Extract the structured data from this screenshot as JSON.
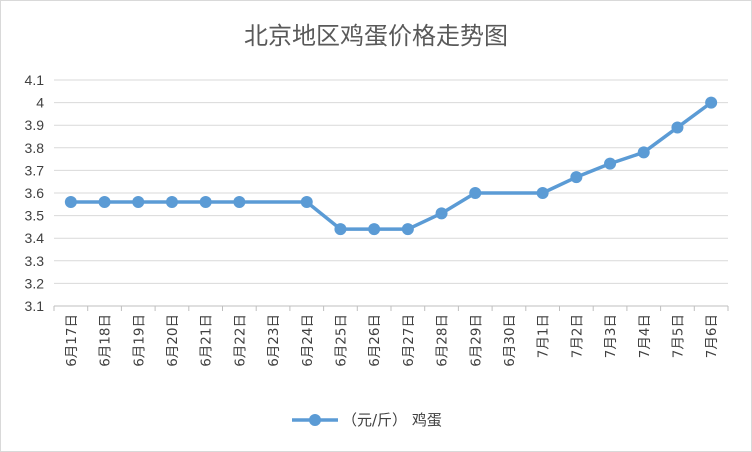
{
  "chart_data": {
    "type": "line",
    "title": "北京地区鸡蛋价格走势图",
    "xlabel": "",
    "ylabel": "",
    "categories": [
      "6月17日",
      "6月18日",
      "6月19日",
      "6月20日",
      "6月21日",
      "6月22日",
      "6月23日",
      "6月24日",
      "6月25日",
      "6月26日",
      "6月27日",
      "6月28日",
      "6月29日",
      "6月30日",
      "7月1日",
      "7月2日",
      "7月3日",
      "7月4日",
      "7月5日",
      "7月6日"
    ],
    "yticks": [
      "3.1",
      "3.2",
      "3.3",
      "3.4",
      "3.5",
      "3.6",
      "3.7",
      "3.8",
      "3.9",
      "4",
      "4.1"
    ],
    "ylim": [
      3.1,
      4.1
    ],
    "series": [
      {
        "name": "（元/斤） 鸡蛋",
        "values": [
          3.56,
          3.56,
          3.56,
          3.56,
          3.56,
          3.56,
          null,
          3.56,
          3.44,
          3.44,
          3.44,
          3.51,
          3.6,
          null,
          3.6,
          3.67,
          3.73,
          3.78,
          3.89,
          4.0
        ],
        "color": "#5b9bd5"
      }
    ],
    "legend": "bottom",
    "grid": true
  }
}
